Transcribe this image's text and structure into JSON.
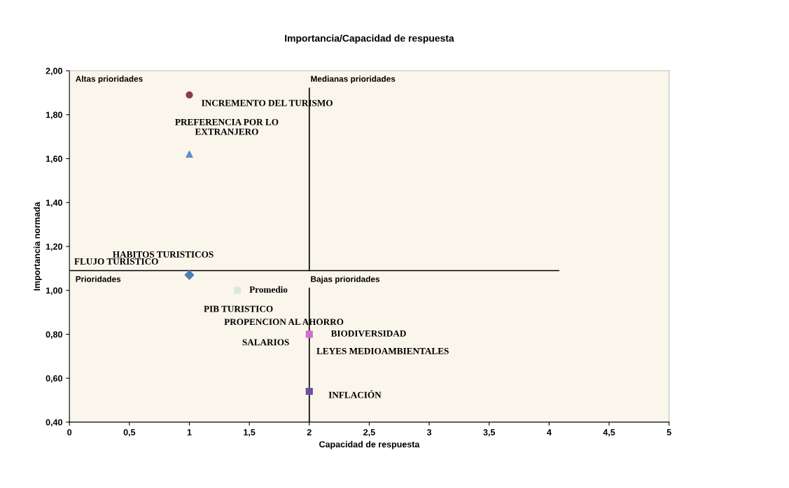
{
  "chart_data": {
    "type": "scatter",
    "title": "Importancia/Capacidad de respuesta",
    "xlabel": "Capacidad de respuesta",
    "ylabel": "Importancia normada",
    "xlim": [
      0,
      5
    ],
    "xticks": [
      0,
      {
        "value": 0.5,
        "label": "0,5"
      },
      1,
      {
        "value": 1.5,
        "label": "1,5"
      },
      2,
      {
        "value": 2.5,
        "label": "2,5"
      },
      3,
      {
        "value": 3.5,
        "label": "3,5"
      },
      4,
      {
        "value": 4.5,
        "label": "4,5"
      },
      5
    ],
    "ylim": [
      0.4,
      2.0
    ],
    "yticks": [
      {
        "value": 0.4,
        "label": "0,40"
      },
      {
        "value": 0.6,
        "label": "0,60"
      },
      {
        "value": 0.8,
        "label": "0,80"
      },
      {
        "value": 1.0,
        "label": "1,00"
      },
      {
        "value": 1.2,
        "label": "1,20"
      },
      {
        "value": 1.4,
        "label": "1,40"
      },
      {
        "value": 1.6,
        "label": "1,60"
      },
      {
        "value": 1.8,
        "label": "1,80"
      },
      {
        "value": 2.0,
        "label": "2,00"
      }
    ],
    "grid": false,
    "legend": false,
    "series": [
      {
        "marker": "circle",
        "color": "#8b3a4a",
        "x": [
          1
        ],
        "values": [
          1.89
        ]
      },
      {
        "marker": "triangle",
        "color": "#5b8fc9",
        "x": [
          1
        ],
        "values": [
          1.62
        ]
      },
      {
        "marker": "diamond",
        "color": "#4a7fb5",
        "x": [
          1
        ],
        "values": [
          1.07
        ]
      },
      {
        "marker": "square",
        "color": "#d8e8e0",
        "x": [
          1.4
        ],
        "values": [
          1.0
        ]
      },
      {
        "marker": "square",
        "color": "#d070d0",
        "x": [
          2
        ],
        "values": [
          0.8
        ]
      },
      {
        "marker": "square",
        "color": "#7050a0",
        "x": [
          2
        ],
        "values": [
          0.54
        ]
      },
      {
        "type": "line",
        "marker": "none",
        "color": "#000000",
        "x": [
          0,
          4.08
        ],
        "values": [
          1.09,
          1.09
        ]
      },
      {
        "type": "line",
        "marker": "none",
        "color": "#000000",
        "x": [
          2,
          2
        ],
        "values": [
          1.09,
          1.92
        ]
      },
      {
        "type": "line",
        "marker": "none",
        "color": "#000000",
        "x": [
          2,
          2
        ],
        "values": [
          0.4,
          1.01
        ]
      }
    ],
    "annotations": [
      "Altas prioridades",
      "Medianas prioridades",
      "Prioridades",
      "Bajas prioridades",
      "INCREMENTO DEL TURISMO",
      "PREFERENCIA POR LO\nEXTRANJERO",
      "HABITOS TURISTICOS",
      "FLUJO TURISTICO",
      "Promedio",
      "PIB TURISTICO",
      "PROPENCION AL AHORRO",
      "BIODIVERSIDAD",
      "SALARIOS",
      "LEYES MEDIOAMBIENTALES",
      "INFLACIÓN"
    ]
  }
}
